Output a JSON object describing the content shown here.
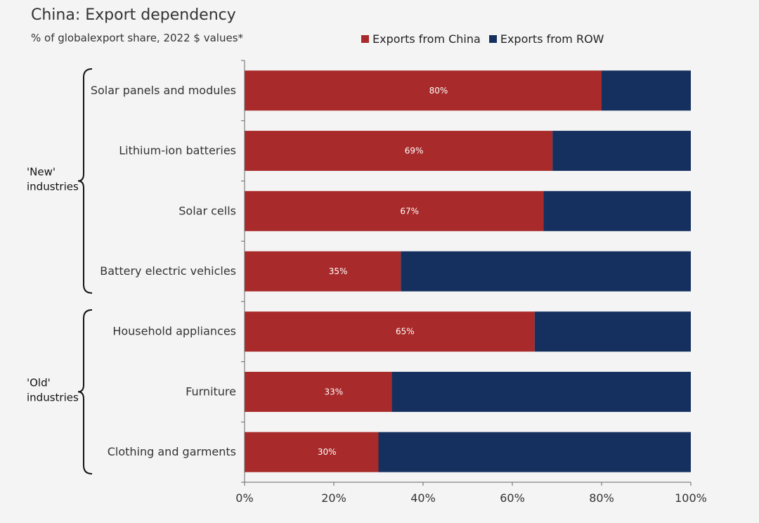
{
  "chart_data": {
    "type": "bar",
    "stacked": true,
    "orientation": "horizontal",
    "title": "China: Export dependency",
    "subtitle": "% of globalexport share, 2022 $ values*",
    "categories": [
      "Solar panels and modules",
      "Lithium-ion batteries",
      "Solar cells",
      "Battery electric vehicles",
      "Household appliances",
      "Furniture",
      "Clothing and garments"
    ],
    "series": [
      {
        "name": "Exports from China",
        "color": "#a82a2a",
        "values": [
          80,
          69,
          67,
          35,
          65,
          33,
          30
        ]
      },
      {
        "name": "Exports from ROW",
        "color": "#15305f",
        "values": [
          20,
          31,
          33,
          65,
          35,
          67,
          70
        ]
      }
    ],
    "data_labels": [
      "80%",
      "69%",
      "67%",
      "35%",
      "65%",
      "33%",
      "30%"
    ],
    "groups": [
      {
        "label_lines": [
          "'New'",
          "industries"
        ],
        "count": 4
      },
      {
        "label_lines": [
          "'Old'",
          "industries"
        ],
        "count": 3
      }
    ],
    "xlim": [
      0,
      100
    ],
    "x_ticks": [
      "0%",
      "20%",
      "40%",
      "60%",
      "80%",
      "100%"
    ],
    "legend_position": "top"
  }
}
